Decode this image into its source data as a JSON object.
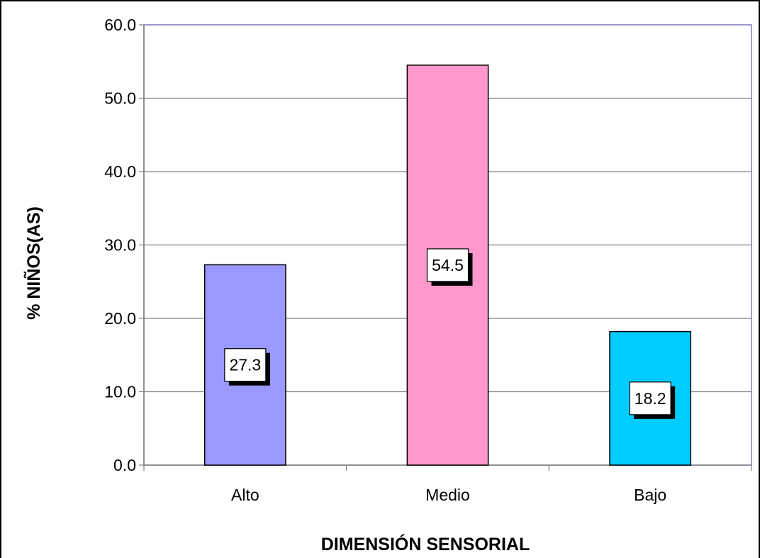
{
  "chart_data": {
    "type": "bar",
    "title": "",
    "categories": [
      "Alto",
      "Medio",
      "Bajo"
    ],
    "values": [
      27.3,
      54.5,
      18.2
    ],
    "data_labels": [
      "27.3",
      "54.5",
      "18.2"
    ],
    "bar_colors": [
      "#9999ff",
      "#ff99cc",
      "#00ccff"
    ],
    "xlabel": "DIMENSIÓN SENSORIAL",
    "ylabel": "% NIÑOS(AS)",
    "ylim": [
      0,
      60
    ],
    "yticks": [
      "0.0",
      "10.0",
      "20.0",
      "30.0",
      "40.0",
      "50.0",
      "60.0"
    ],
    "grid": true,
    "legend": "none",
    "plot_border_color": "#8080c0",
    "grid_color": "#808080"
  }
}
